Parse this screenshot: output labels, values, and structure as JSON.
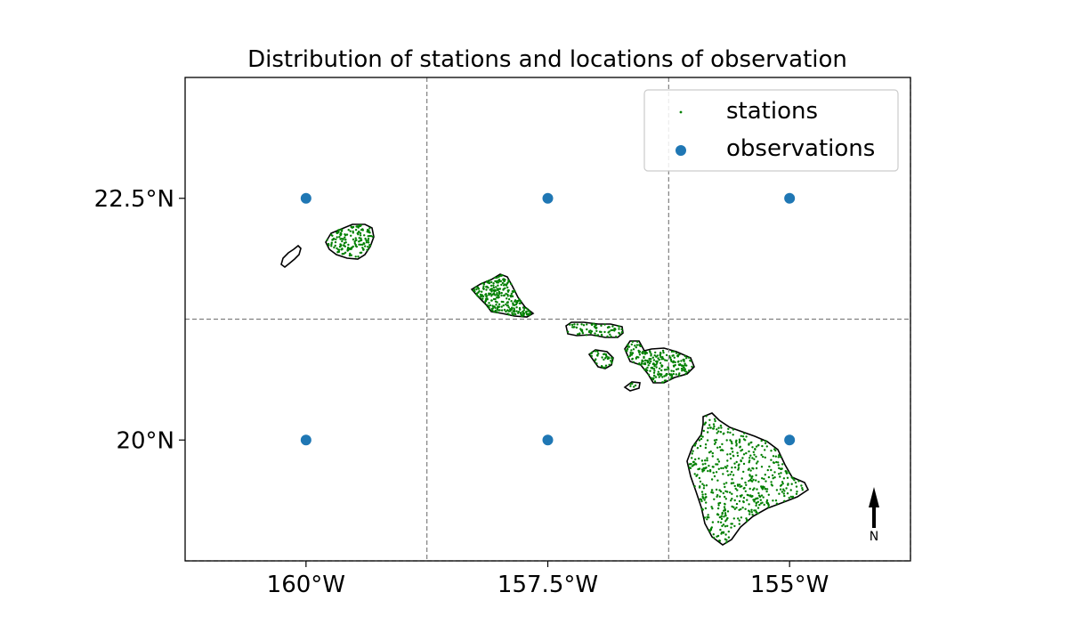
{
  "chart_data": {
    "type": "scatter",
    "title": "Distribution of stations and locations of observation",
    "xlabel": "",
    "ylabel": "",
    "xlim": [
      -161.25,
      -153.75
    ],
    "ylim": [
      18.75,
      23.75
    ],
    "x_ticks": [
      {
        "value": -160,
        "label": "160°W"
      },
      {
        "value": -157.5,
        "label": "157.5°W"
      },
      {
        "value": -155,
        "label": "155°W"
      }
    ],
    "y_ticks": [
      {
        "value": 22.5,
        "label": "22.5°N"
      },
      {
        "value": 20,
        "label": "20°N"
      }
    ],
    "grid": true,
    "grid_lines_lon": [
      -158.75,
      -156.25,
      -153.75
    ],
    "grid_lines_lat": [
      21.25,
      18.75
    ],
    "legend_position": "top-right",
    "series": [
      {
        "name": "stations",
        "color": "#008000",
        "marker": "small-dot"
      },
      {
        "name": "observations",
        "color": "#1f77b4",
        "marker": "circle",
        "points": [
          {
            "lon": -160,
            "lat": 22.5
          },
          {
            "lon": -157.5,
            "lat": 22.5
          },
          {
            "lon": -155,
            "lat": 22.5
          },
          {
            "lon": -160,
            "lat": 20
          },
          {
            "lon": -157.5,
            "lat": 20
          },
          {
            "lon": -155,
            "lat": 20
          }
        ]
      }
    ],
    "north_arrow_label": "N"
  }
}
